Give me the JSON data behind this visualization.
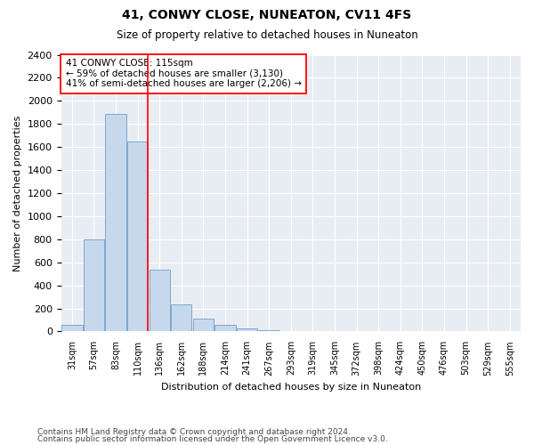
{
  "title": "41, CONWY CLOSE, NUNEATON, CV11 4FS",
  "subtitle": "Size of property relative to detached houses in Nuneaton",
  "xlabel": "Distribution of detached houses by size in Nuneaton",
  "ylabel": "Number of detached properties",
  "bar_color": "#c8d8ec",
  "bar_edge_color": "#7aa8d2",
  "background_color": "#e8edf4",
  "annotation_box_text": "41 CONWY CLOSE: 115sqm\n← 59% of detached houses are smaller (3,130)\n41% of semi-detached houses are larger (2,206) →",
  "annotation_box_color": "white",
  "annotation_box_edge_color": "red",
  "vline_x_index": 3,
  "vline_color": "red",
  "categories": [
    "31sqm",
    "57sqm",
    "83sqm",
    "110sqm",
    "136sqm",
    "162sqm",
    "188sqm",
    "214sqm",
    "241sqm",
    "267sqm",
    "293sqm",
    "319sqm",
    "345sqm",
    "372sqm",
    "398sqm",
    "424sqm",
    "450sqm",
    "476sqm",
    "503sqm",
    "529sqm",
    "555sqm"
  ],
  "values": [
    55,
    800,
    1890,
    1650,
    535,
    238,
    108,
    58,
    30,
    15,
    5,
    0,
    0,
    0,
    0,
    0,
    0,
    0,
    0,
    0,
    0
  ],
  "ylim": [
    0,
    2400
  ],
  "yticks": [
    0,
    200,
    400,
    600,
    800,
    1000,
    1200,
    1400,
    1600,
    1800,
    2000,
    2200,
    2400
  ],
  "footer_line1": "Contains HM Land Registry data © Crown copyright and database right 2024.",
  "footer_line2": "Contains public sector information licensed under the Open Government Licence v3.0."
}
